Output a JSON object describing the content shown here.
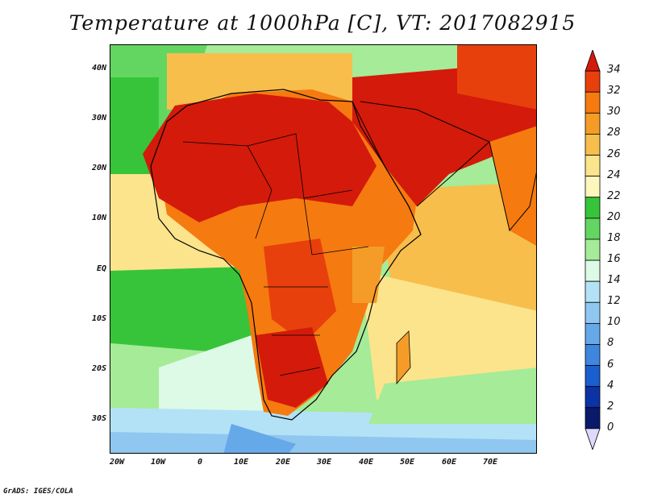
{
  "title": "Temperature at 1000hPa [C], VT: 2017082915",
  "credit": "GrADS: IGES/COLA",
  "lat_labels": [
    "40N",
    "30N",
    "20N",
    "10N",
    "EQ",
    "10S",
    "20S",
    "30S"
  ],
  "lon_labels": [
    "20W",
    "10W",
    "0",
    "10E",
    "20E",
    "30E",
    "40E",
    "50E",
    "60E",
    "70E"
  ],
  "colorbar": {
    "labels": [
      "34",
      "32",
      "30",
      "28",
      "26",
      "24",
      "22",
      "20",
      "18",
      "16",
      "14",
      "12",
      "10",
      "8",
      "6",
      "4",
      "2",
      "0"
    ],
    "colors": [
      "#d41a0a",
      "#e8400c",
      "#f57a10",
      "#f59c28",
      "#f7be4c",
      "#fbe48c",
      "#fdf7be",
      "#37c43a",
      "#63d661",
      "#a5eb98",
      "#dcfae6",
      "#b3e2f7",
      "#8fc7f0",
      "#66a9e9",
      "#3e86de",
      "#1a5fcf",
      "#0b33a6",
      "#0a1a6a",
      "#ddd9ff"
    ]
  },
  "map": {
    "region": "Africa and surrounding oceans",
    "lon_range": [
      -22,
      82
    ],
    "lat_range": [
      -37,
      45
    ],
    "colors": {
      "ocean_cool": "#3e86de",
      "ocean_mild": "#b3e2f7",
      "ocean_green": "#37c43a",
      "ocean_light_green": "#a5eb98",
      "warm_land": "#f57a10",
      "hot_land": "#d41a0a",
      "mild_land": "#fbe48c",
      "warm_sea": "#f7be4c",
      "border": "#000000"
    }
  }
}
